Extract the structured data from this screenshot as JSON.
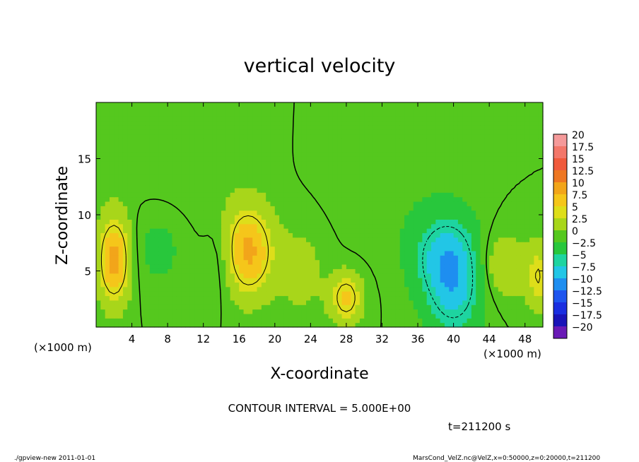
{
  "chart_data": {
    "type": "heatmap",
    "title": "vertical velocity",
    "xlabel": "X-coordinate",
    "ylabel": "Z-coordinate",
    "x_unit_left": "(×1000 m)",
    "x_unit_right": "(×1000 m)",
    "xlim": [
      0,
      50
    ],
    "ylim": [
      0,
      20
    ],
    "x_ticks": [
      {
        "v": 4,
        "label": "4"
      },
      {
        "v": 8,
        "label": "8"
      },
      {
        "v": 12,
        "label": "12"
      },
      {
        "v": 16,
        "label": "16"
      },
      {
        "v": 20,
        "label": "20"
      },
      {
        "v": 24,
        "label": "24"
      },
      {
        "v": 28,
        "label": "28"
      },
      {
        "v": 32,
        "label": "32"
      },
      {
        "v": 36,
        "label": "36"
      },
      {
        "v": 40,
        "label": "40"
      },
      {
        "v": 44,
        "label": "44"
      },
      {
        "v": 48,
        "label": "48"
      }
    ],
    "y_ticks": [
      {
        "v": 5,
        "label": "5"
      },
      {
        "v": 10,
        "label": "10"
      },
      {
        "v": 15,
        "label": "15"
      }
    ],
    "colorbar": {
      "labels": [
        "20",
        "17.5",
        "15",
        "12.5",
        "10",
        "7.5",
        "5",
        "2.5",
        "0",
        "−2.5",
        "−5",
        "−7.5",
        "−10",
        "−12.5",
        "−15",
        "−17.5",
        "−20"
      ],
      "colors": [
        "#f59a9a",
        "#f3776a",
        "#f05a3c",
        "#ee7722",
        "#f2a51a",
        "#f5c61a",
        "#dede1a",
        "#a8d61a",
        "#55c81e",
        "#28c73c",
        "#1ed4a0",
        "#22c6e6",
        "#1e8ef0",
        "#1e55ee",
        "#1a2ee0",
        "#1a14b8",
        "#6a1ab6"
      ]
    },
    "blobs": [
      {
        "x": 2.0,
        "z": 6.0,
        "sx": 1.2,
        "sz": 2.6,
        "w": 10
      },
      {
        "x": 17.0,
        "z": 6.8,
        "sx": 1.9,
        "sz": 2.7,
        "w": 9.5
      },
      {
        "x": 28.0,
        "z": 2.6,
        "sx": 1.2,
        "sz": 1.5,
        "w": 7
      },
      {
        "x": 40.0,
        "z": 4.5,
        "sx": 2.2,
        "sz": 3.5,
        "w": -8.5
      },
      {
        "x": 37.5,
        "z": 6.5,
        "sx": 2.2,
        "sz": 2.5,
        "w": -3
      },
      {
        "x": 7.0,
        "z": 7.0,
        "sx": 2.0,
        "sz": 2.5,
        "w": -2
      },
      {
        "x": 14.0,
        "z": 6.0,
        "sx": 1.2,
        "sz": 2.5,
        "w": -2
      },
      {
        "x": 45.5,
        "z": 5.5,
        "sx": 1.8,
        "sz": 2.0,
        "w": 3.5
      },
      {
        "x": 49.5,
        "z": 4.5,
        "sx": 1.0,
        "sz": 2.0,
        "w": 5
      },
      {
        "x": 23.0,
        "z": 5.0,
        "sx": 2.0,
        "sz": 3.0,
        "w": 2
      },
      {
        "x": 32.0,
        "z": 14.0,
        "sx": 4.0,
        "sz": 4.0,
        "w": -1.2
      },
      {
        "x": 10.0,
        "z": 15.0,
        "sx": 5.0,
        "sz": 4.0,
        "w": 0.8
      }
    ],
    "contour_interval_text": "CONTOUR INTERVAL = 5.000E+00",
    "time_text": "t=211200 s"
  },
  "footer": {
    "left": "./gpview-new   2011-01-01",
    "right": "MarsCond_VelZ.nc@VelZ,x=0:50000,z=0:20000,t=211200"
  }
}
